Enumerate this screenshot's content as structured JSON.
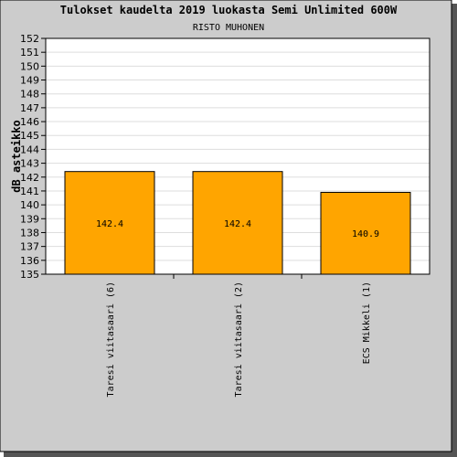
{
  "chart_data": {
    "type": "bar",
    "title": "Tulokset kaudelta 2019 luokasta Semi Unlimited 600W",
    "subtitle": "RISTO MUHONEN",
    "xlabel": "",
    "ylabel": "dB asteikko",
    "categories": [
      "Taresi viitasaari (6)",
      "Taresi viitasaari (2)",
      "ECS Mikkeli (1)"
    ],
    "values": [
      142.4,
      142.4,
      140.9
    ],
    "value_labels": [
      "142.4",
      "142.4",
      "140.9"
    ],
    "ylim": [
      135,
      152
    ],
    "yticks": [
      "135",
      "136",
      "137",
      "138",
      "139",
      "140",
      "141",
      "142",
      "143",
      "144",
      "145",
      "146",
      "147",
      "148",
      "149",
      "150",
      "151",
      "152"
    ],
    "grid": true,
    "legend": "none",
    "colors": {
      "bar": "#ffa500",
      "bar_edge": "#000000",
      "frame_bg": "#cccccc",
      "plot_bg": "#ffffff",
      "grid": "#dddddd",
      "shadow": "#555555"
    }
  }
}
